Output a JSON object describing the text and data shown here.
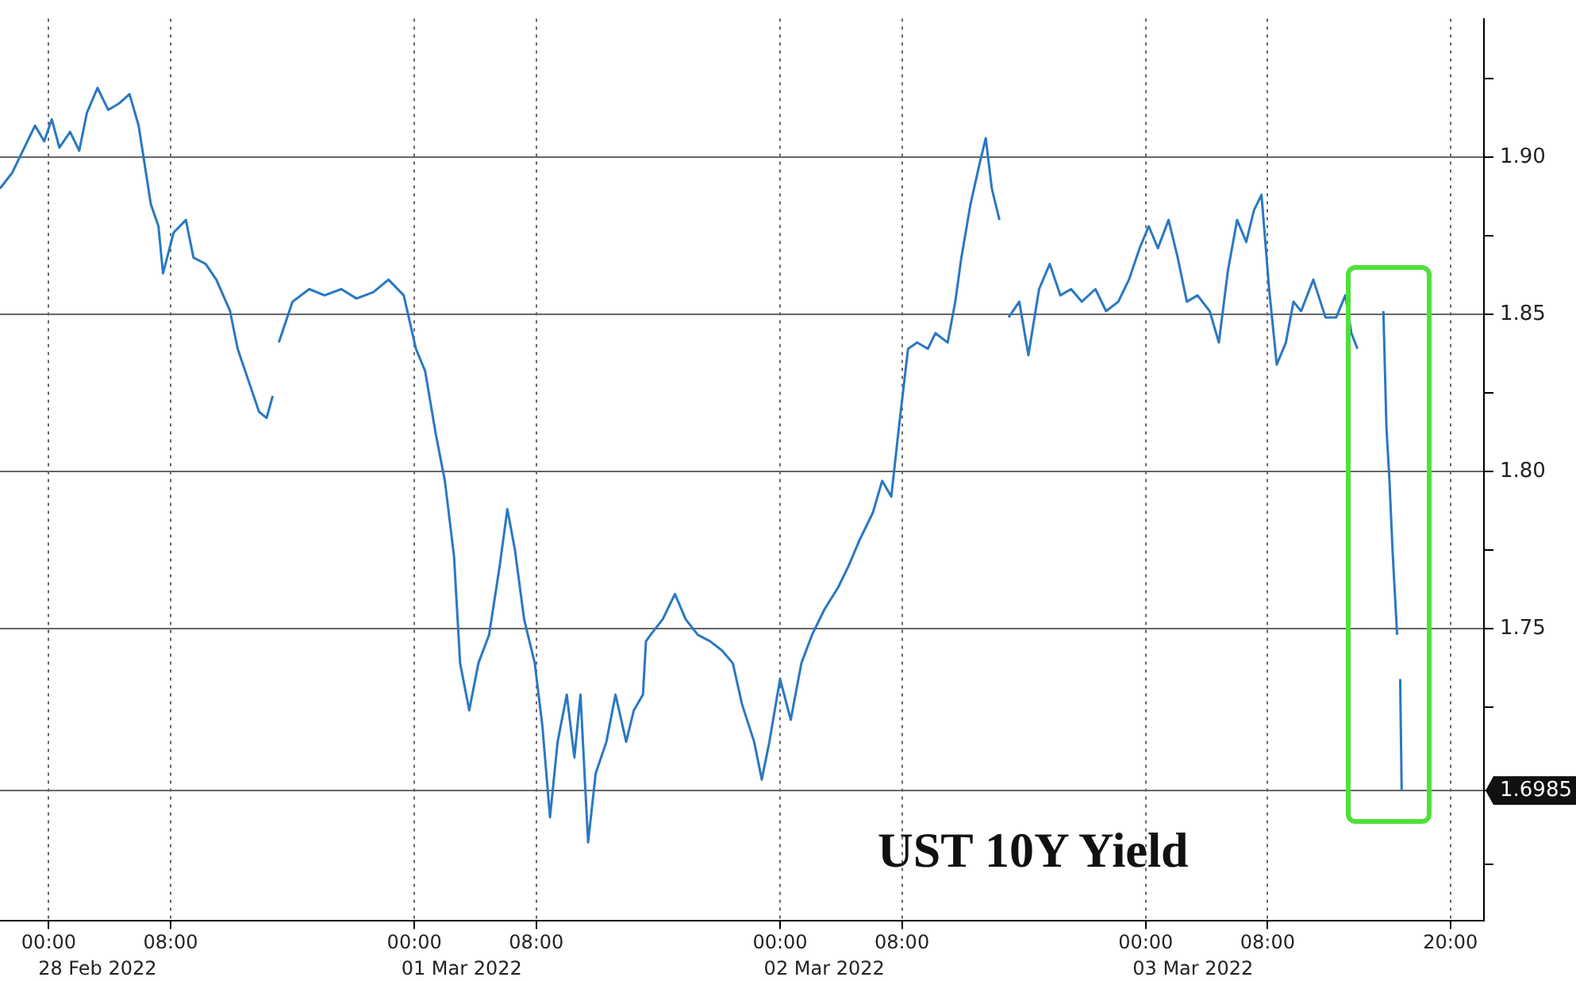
{
  "chart_data": {
    "type": "line",
    "title": "UST 10Y Yield",
    "color": "#2a78c2",
    "grid": true,
    "x": [
      "2022-02-27T20:48",
      "2022-02-27T21:36",
      "2022-02-27T22:18",
      "2022-02-27T23:06",
      "2022-02-27T23:42",
      "2022-02-28T00:12",
      "2022-02-28T00:42",
      "2022-02-28T01:24",
      "2022-02-28T02:00",
      "2022-02-28T02:30",
      "2022-02-28T03:12",
      "2022-02-28T03:54",
      "2022-02-28T04:36",
      "2022-02-28T05:18",
      "2022-02-28T05:54",
      "2022-02-28T06:42",
      "2022-02-28T07:12",
      "2022-02-28T07:30",
      "2022-02-28T08:12",
      "2022-02-28T09:00",
      "2022-02-28T09:30",
      "2022-02-28T10:18",
      "2022-02-28T11:00",
      "2022-02-28T11:54",
      "2022-02-28T12:24",
      "2022-02-28T13:06",
      "2022-02-28T13:48",
      "2022-02-28T14:18",
      "2022-02-28T14:42",
      "2022-02-28T14:54",
      "2022-02-28T15:06",
      "2022-02-28T16:00",
      "2022-02-28T17:06",
      "2022-02-28T18:06",
      "2022-02-28T19:12",
      "2022-02-28T20:12",
      "2022-02-28T21:18",
      "2022-02-28T22:18",
      "2022-02-28T23:18",
      "2022-03-01T00:06",
      "2022-03-01T00:42",
      "2022-03-01T01:24",
      "2022-03-01T02:00",
      "2022-03-01T02:36",
      "2022-03-01T03:00",
      "2022-03-01T03:36",
      "2022-03-01T04:12",
      "2022-03-01T04:54",
      "2022-03-01T05:36",
      "2022-03-01T06:06",
      "2022-03-01T06:36",
      "2022-03-01T07:12",
      "2022-03-01T07:54",
      "2022-03-01T08:24",
      "2022-03-01T08:54",
      "2022-03-01T09:24",
      "2022-03-01T10:00",
      "2022-03-01T10:30",
      "2022-03-01T10:54",
      "2022-03-01T11:24",
      "2022-03-01T11:54",
      "2022-03-01T12:36",
      "2022-03-01T13:12",
      "2022-03-01T13:54",
      "2022-03-01T14:24",
      "2022-03-01T15:00",
      "2022-03-01T15:12",
      "2022-03-01T15:30",
      "2022-03-01T16:18",
      "2022-03-01T17:06",
      "2022-03-01T17:48",
      "2022-03-01T18:36",
      "2022-03-01T19:24",
      "2022-03-01T20:12",
      "2022-03-01T20:54",
      "2022-03-01T21:30",
      "2022-03-01T22:18",
      "2022-03-01T22:48",
      "2022-03-01T23:18",
      "2022-03-02T00:00",
      "2022-03-02T00:42",
      "2022-03-02T01:24",
      "2022-03-02T02:06",
      "2022-03-02T02:54",
      "2022-03-02T03:48",
      "2022-03-02T04:30",
      "2022-03-02T05:12",
      "2022-03-02T06:06",
      "2022-03-02T06:42",
      "2022-03-02T07:18",
      "2022-03-02T07:48",
      "2022-03-02T08:24",
      "2022-03-02T09:00",
      "2022-03-02T09:42",
      "2022-03-02T10:12",
      "2022-03-02T11:00",
      "2022-03-02T11:30",
      "2022-03-02T11:54",
      "2022-03-02T12:30",
      "2022-03-02T13:06",
      "2022-03-02T13:30",
      "2022-03-02T13:54",
      "2022-03-02T14:24",
      "2022-03-02T14:42",
      "2022-03-02T15:00",
      "2022-03-02T15:42",
      "2022-03-02T16:18",
      "2022-03-02T17:00",
      "2022-03-02T17:42",
      "2022-03-02T18:24",
      "2022-03-02T19:06",
      "2022-03-02T19:48",
      "2022-03-02T20:42",
      "2022-03-02T21:24",
      "2022-03-02T22:12",
      "2022-03-02T22:54",
      "2022-03-02T23:36",
      "2022-03-03T00:12",
      "2022-03-03T00:48",
      "2022-03-03T01:30",
      "2022-03-03T02:06",
      "2022-03-03T02:42",
      "2022-03-03T03:24",
      "2022-03-03T04:12",
      "2022-03-03T04:48",
      "2022-03-03T05:24",
      "2022-03-03T06:00",
      "2022-03-03T06:36",
      "2022-03-03T07:06",
      "2022-03-03T07:36",
      "2022-03-03T08:06",
      "2022-03-03T08:36",
      "2022-03-03T09:12",
      "2022-03-03T09:42",
      "2022-03-03T10:12",
      "2022-03-03T11:00",
      "2022-03-03T11:48",
      "2022-03-03T12:30",
      "2022-03-03T13:06",
      "2022-03-03T13:30",
      "2022-03-03T13:54",
      "2022-03-03T14:48",
      "2022-03-03T15:36",
      "2022-03-03T15:48",
      "2022-03-03T16:00",
      "2022-03-03T16:12",
      "2022-03-03T16:30",
      "2022-03-03T16:36",
      "2022-03-03T16:42",
      "2022-03-03T16:48"
    ],
    "values": [
      1.89,
      1.895,
      1.902,
      1.91,
      1.905,
      1.912,
      1.903,
      1.908,
      1.902,
      1.914,
      1.922,
      1.915,
      1.917,
      1.92,
      1.91,
      1.885,
      1.878,
      1.863,
      1.876,
      1.88,
      1.868,
      1.866,
      1.861,
      1.851,
      1.839,
      1.829,
      1.819,
      1.817,
      1.824,
      null,
      1.841,
      1.854,
      1.858,
      1.856,
      1.858,
      1.855,
      1.857,
      1.861,
      1.856,
      1.839,
      1.832,
      1.812,
      1.797,
      1.773,
      1.739,
      1.724,
      1.739,
      1.748,
      1.77,
      1.788,
      1.775,
      1.753,
      1.739,
      1.719,
      1.69,
      1.714,
      1.729,
      1.709,
      1.729,
      1.682,
      1.704,
      1.714,
      1.729,
      1.714,
      1.724,
      1.729,
      1.746,
      1.748,
      1.753,
      1.761,
      1.753,
      1.748,
      1.746,
      1.743,
      1.739,
      1.726,
      1.714,
      1.702,
      1.714,
      1.734,
      1.721,
      1.739,
      1.748,
      1.756,
      1.763,
      1.77,
      1.778,
      1.787,
      1.797,
      1.792,
      1.814,
      1.839,
      1.841,
      1.839,
      1.844,
      1.841,
      1.854,
      1.868,
      1.885,
      1.898,
      1.906,
      1.89,
      1.88,
      null,
      1.849,
      1.854,
      1.837,
      1.858,
      1.866,
      1.856,
      1.858,
      1.854,
      1.858,
      1.851,
      1.854,
      1.861,
      1.871,
      1.878,
      1.871,
      1.88,
      1.868,
      1.854,
      1.856,
      1.851,
      1.841,
      1.864,
      1.88,
      1.873,
      1.883,
      1.888,
      1.858,
      1.834,
      1.841,
      1.854,
      1.851,
      1.861,
      1.849,
      1.849,
      1.856,
      1.844,
      1.839,
      null,
      1.851,
      1.814,
      1.797,
      1.775,
      1.748,
      null,
      1.734,
      1.6985
    ],
    "xlim": [
      "2022-02-27T20:48",
      "2022-03-03T22:12"
    ],
    "xticks": [
      {
        "value": "2022-02-28T00:00",
        "label": "00:00"
      },
      {
        "value": "2022-02-28T08:00",
        "label": "08:00"
      },
      {
        "value": "2022-03-01T00:00",
        "label": "00:00"
      },
      {
        "value": "2022-03-01T08:00",
        "label": "08:00"
      },
      {
        "value": "2022-03-02T00:00",
        "label": "00:00"
      },
      {
        "value": "2022-03-02T08:00",
        "label": "08:00"
      },
      {
        "value": "2022-03-03T00:00",
        "label": "00:00"
      },
      {
        "value": "2022-03-03T08:00",
        "label": "08:00"
      },
      {
        "value": "2022-03-03T20:00",
        "label": "20:00"
      }
    ],
    "x2lim": [
      "2022-02-27T20:48",
      "2022-03-03T22:12"
    ],
    "x2ticks": [
      {
        "value": "2022-02-28T03:12",
        "label": "28 Feb 2022"
      },
      {
        "value": "2022-03-01T03:06",
        "label": "01 Mar 2022"
      },
      {
        "value": "2022-03-02T02:54",
        "label": "02 Mar 2022"
      },
      {
        "value": "2022-03-03T03:06",
        "label": "03 Mar 2022"
      }
    ],
    "ylim": [
      1.657,
      1.944
    ],
    "yticks": [
      {
        "value": 1.675,
        "label": null
      },
      {
        "value": 1.6985,
        "label": "1.6985"
      },
      {
        "value": 1.725,
        "label": null
      },
      {
        "value": 1.75,
        "label": "1.75"
      },
      {
        "value": 1.775,
        "label": null
      },
      {
        "value": 1.8,
        "label": "1.80"
      },
      {
        "value": 1.825,
        "label": null
      },
      {
        "value": 1.85,
        "label": "1.85"
      },
      {
        "value": 1.875,
        "label": null
      },
      {
        "value": 1.9,
        "label": "1.90"
      },
      {
        "value": 1.925,
        "label": null
      }
    ]
  }
}
